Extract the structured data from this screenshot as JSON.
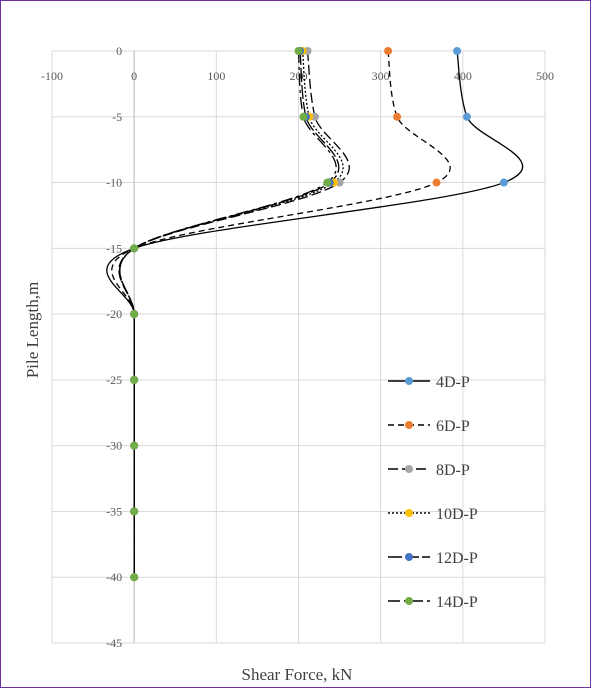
{
  "chart_data": {
    "type": "line",
    "xlabel": "Shear Force, kN",
    "ylabel": "Pile Length,m",
    "xlim": [
      -100,
      500
    ],
    "ylim": [
      -45,
      0
    ],
    "x_ticks": [
      "-100",
      "0",
      "100",
      "200",
      "300",
      "400",
      "500"
    ],
    "y_ticks": [
      "0",
      "-5",
      "-10",
      "-15",
      "-20",
      "-25",
      "-30",
      "-35",
      "-40",
      "-45"
    ],
    "grid": true,
    "legend_position": "right",
    "series": [
      {
        "name": "4D-P",
        "color": "#5b9bd5",
        "dash": "solid",
        "x": [
          393,
          405,
          450,
          0,
          0,
          0,
          0,
          0,
          0
        ],
        "y": [
          0,
          -5,
          -10,
          -15,
          -20,
          -25,
          -30,
          -35,
          -40
        ]
      },
      {
        "name": "6D-P",
        "color": "#ed7d31",
        "dash": "6 4",
        "x": [
          309,
          320,
          368,
          0,
          0,
          0,
          0,
          0,
          0
        ],
        "y": [
          0,
          -5,
          -10,
          -15,
          -20,
          -25,
          -30,
          -35,
          -40
        ]
      },
      {
        "name": "8D-P",
        "color": "#a5a5a5",
        "dash": "10 4",
        "x": [
          211,
          220,
          250,
          0,
          0,
          0,
          0,
          0,
          0
        ],
        "y": [
          0,
          -5,
          -10,
          -15,
          -20,
          -25,
          -30,
          -35,
          -40
        ]
      },
      {
        "name": "10D-P",
        "color": "#ffc000",
        "dash": "2 2",
        "x": [
          205,
          213,
          243,
          0,
          0,
          0,
          0,
          0,
          0
        ],
        "y": [
          0,
          -5,
          -10,
          -15,
          -20,
          -25,
          -30,
          -35,
          -40
        ]
      },
      {
        "name": "12D-P",
        "color": "#4472c4",
        "dash": "14 3",
        "x": [
          202,
          209,
          238,
          0,
          0,
          0,
          0,
          0,
          0
        ],
        "y": [
          0,
          -5,
          -10,
          -15,
          -20,
          -25,
          -30,
          -35,
          -40
        ]
      },
      {
        "name": "14D-P",
        "color": "#70ad47",
        "dash": "12 4 3 4",
        "x": [
          200,
          206,
          235,
          0,
          0,
          0,
          0,
          0,
          0
        ],
        "y": [
          0,
          -5,
          -10,
          -15,
          -20,
          -25,
          -30,
          -35,
          -40
        ]
      }
    ]
  }
}
